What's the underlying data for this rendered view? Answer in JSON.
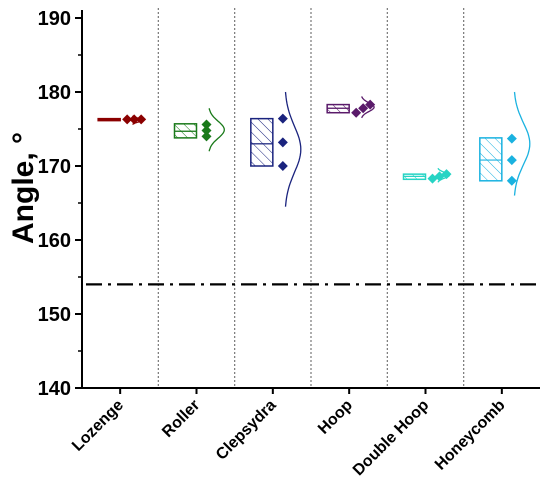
{
  "chart_data": {
    "type": "box",
    "ylabel": "Angle, °",
    "ylim": [
      140,
      190
    ],
    "yticks": [
      140,
      150,
      160,
      170,
      180,
      190
    ],
    "reference_line": 154,
    "grid": false,
    "categories": [
      "Lozenge",
      "Roller",
      "Clepsydra",
      "Hoop",
      "Double Hoop",
      "Honeycomb"
    ],
    "colors": [
      "#8b0000",
      "#1a7a1a",
      "#1a237e",
      "#5a1a6a",
      "#26d4c4",
      "#1ab2e0"
    ],
    "series": [
      {
        "name": "Lozenge",
        "q1": 176.2,
        "median": 176.3,
        "q3": 176.4,
        "points": [
          176.3,
          176.3,
          176.3
        ],
        "dist": [
          175.6,
          176.8
        ]
      },
      {
        "name": "Roller",
        "q1": 173.8,
        "median": 174.7,
        "q3": 175.7,
        "points": [
          174.0,
          174.8,
          175.6
        ],
        "dist": [
          172.0,
          177.8
        ]
      },
      {
        "name": "Clepsydra",
        "q1": 170.0,
        "median": 173.0,
        "q3": 176.4,
        "points": [
          170.0,
          173.2,
          176.4
        ],
        "dist": [
          164.5,
          180.0
        ]
      },
      {
        "name": "Hoop",
        "q1": 177.2,
        "median": 177.8,
        "q3": 178.3,
        "points": [
          177.2,
          177.8,
          178.3
        ],
        "dist": [
          176.5,
          179.4
        ]
      },
      {
        "name": "Double Hoop",
        "q1": 168.2,
        "median": 168.6,
        "q3": 168.9,
        "points": [
          168.3,
          168.6,
          168.9
        ],
        "dist": [
          167.8,
          169.7
        ]
      },
      {
        "name": "Honeycomb",
        "q1": 168.0,
        "median": 170.8,
        "q3": 173.8,
        "points": [
          168.0,
          170.8,
          173.7
        ],
        "dist": [
          166.0,
          180.0
        ]
      }
    ]
  }
}
